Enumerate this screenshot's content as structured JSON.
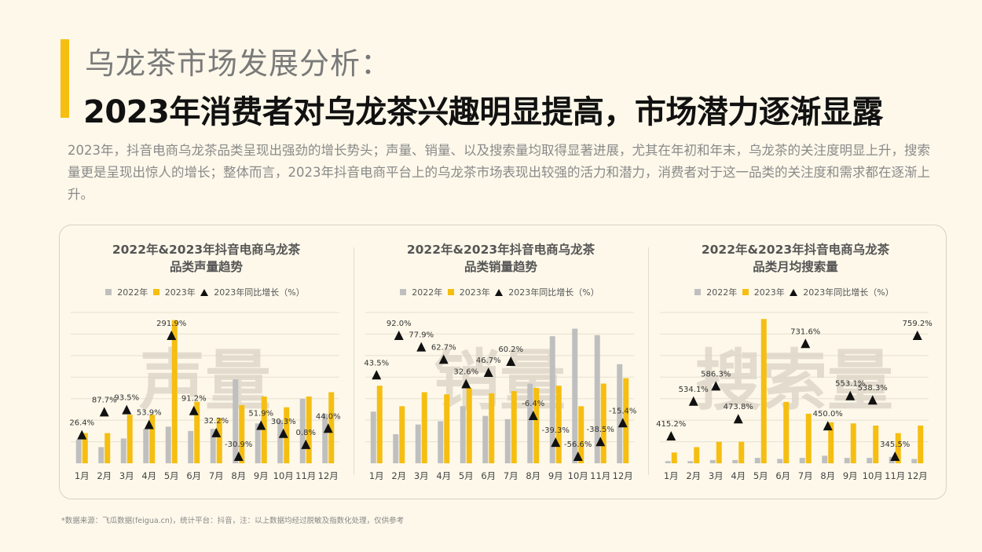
{
  "header": {
    "kicker": "乌龙茶市场发展分析：",
    "headline": "2023年消费者对乌龙茶兴趣明显提高，市场潜力逐渐显露",
    "summary": "2023年，抖音电商乌龙茶品类呈现出强劲的增长势头；声量、销量、以及搜索量均取得显著进展，尤其在年初和年末，乌龙茶的关注度明显上升，搜索量更是呈现出惊人的增长；整体而言，2023年抖音电商平台上的乌龙茶市场表现出较强的活力和潜力，消费者对于这一品类的关注度和需求都在逐渐上升。"
  },
  "colors": {
    "y2022": "#BFBFBF",
    "y2023": "#F5BE11",
    "growth": "#111111",
    "accent": "#F5BE11"
  },
  "legend": {
    "s2022": "2022年",
    "s2023": "2023年",
    "growth": "2023年同比增长（%）"
  },
  "footnote": "*数据来源：飞瓜数据(feigua.cn)，统计平台：抖音，注：以上数据均经过脱敏及指数化处理，仅供参考",
  "chart_data": [
    {
      "type": "bar",
      "title_line1": "2022年&2023年抖音电商乌龙茶",
      "title_line2": "品类声量趋势",
      "watermark": "声量",
      "categories": [
        "1月",
        "2月",
        "3月",
        "4月",
        "5月",
        "6月",
        "7月",
        "8月",
        "9月",
        "10月",
        "11月",
        "12月"
      ],
      "series": [
        {
          "name": "2022年",
          "values": [
            22,
            15,
            23,
            32,
            34,
            30,
            32,
            78,
            37,
            40,
            60,
            46
          ]
        },
        {
          "name": "2023年",
          "values": [
            28,
            28,
            45,
            45,
            133,
            57,
            42,
            54,
            62,
            52,
            62,
            66
          ]
        }
      ],
      "growth_labels": [
        "26.4%",
        "87.7%",
        "93.5%",
        "53.9%",
        "291.9%",
        "91.2%",
        "32.2%",
        "-30.9%",
        "51.9%",
        "30.3%",
        "0.8%",
        "44.0%"
      ],
      "growth_values": [
        26.4,
        87.7,
        93.5,
        53.9,
        291.9,
        91.2,
        32.2,
        -30.9,
        51.9,
        30.3,
        0.8,
        44.0
      ],
      "grid": true
    },
    {
      "type": "bar",
      "title_line1": "2022年&2023年抖音电商乌龙茶",
      "title_line2": "品类销量趋势",
      "watermark": "销量",
      "categories": [
        "1月",
        "2月",
        "3月",
        "4月",
        "5月",
        "6月",
        "7月",
        "8月",
        "9月",
        "10月",
        "11月",
        "12月"
      ],
      "series": [
        {
          "name": "2022年",
          "values": [
            48,
            27,
            36,
            39,
            53,
            44,
            41,
            74,
            118,
            125,
            119,
            92
          ]
        },
        {
          "name": "2023年",
          "values": [
            72,
            53,
            66,
            64,
            70,
            65,
            67,
            70,
            72,
            53,
            74,
            79
          ]
        }
      ],
      "growth_labels": [
        "43.5%",
        "92.0%",
        "77.9%",
        "62.7%",
        "32.6%",
        "46.7%",
        "60.2%",
        "-6.4%",
        "-39.3%",
        "-56.6%",
        "-38.5%",
        "-15.4%"
      ],
      "growth_values": [
        43.5,
        92.0,
        77.9,
        62.7,
        32.6,
        46.7,
        60.2,
        -6.4,
        -39.3,
        -56.6,
        -38.5,
        -15.4
      ],
      "grid": true
    },
    {
      "type": "bar",
      "title_line1": "2022年&2023年抖音电商乌龙茶",
      "title_line2": "品类月均搜索量",
      "watermark": "搜索量",
      "categories": [
        "1月",
        "2月",
        "3月",
        "4月",
        "5月",
        "6月",
        "7月",
        "8月",
        "9月",
        "10月",
        "11月",
        "12月"
      ],
      "series": [
        {
          "name": "2022年",
          "values": [
            2,
            2,
            3,
            3,
            5,
            4,
            5,
            7,
            5,
            5,
            6,
            4
          ]
        },
        {
          "name": "2023年",
          "values": [
            10,
            15,
            20,
            20,
            134,
            57,
            46,
            38,
            37,
            35,
            28,
            35
          ]
        }
      ],
      "growth_labels": [
        "415.2%",
        "534.1%",
        "586.3%",
        "473.8%",
        "",
        "",
        "731.6%",
        "450.0%",
        "553.1%",
        "538.3%",
        "345.5%",
        "759.2%"
      ],
      "growth_values": [
        415.2,
        534.1,
        586.3,
        473.8,
        null,
        null,
        731.6,
        450.0,
        553.1,
        538.3,
        345.5,
        759.2
      ],
      "grid": true
    }
  ]
}
